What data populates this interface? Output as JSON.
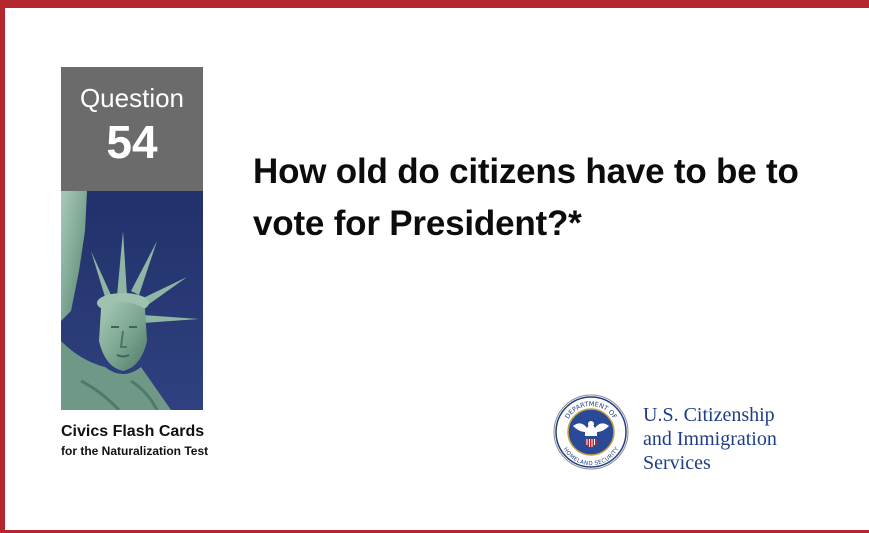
{
  "question_box": {
    "label": "Question",
    "number": "54"
  },
  "question": {
    "text": "How old do citizens have to be to vote for President?*"
  },
  "deck": {
    "title": "Civics Flash Cards",
    "subtitle": "for the Naturalization Test"
  },
  "agency": {
    "line1": "U.S. Citizenship",
    "line2": "and Immigration",
    "line3": "Services",
    "seal_top_text": "DEPARTMENT OF",
    "seal_bottom_text": "HOMELAND SECURITY"
  },
  "colors": {
    "frame": "#b5262e",
    "question_box": "#6b6b6b",
    "sky": "#26356e",
    "statue": "#7fa894",
    "agency_text": "#1f3d87"
  },
  "icons": {
    "seal": "dhs-seal-icon",
    "statue": "statue-of-liberty-image"
  }
}
